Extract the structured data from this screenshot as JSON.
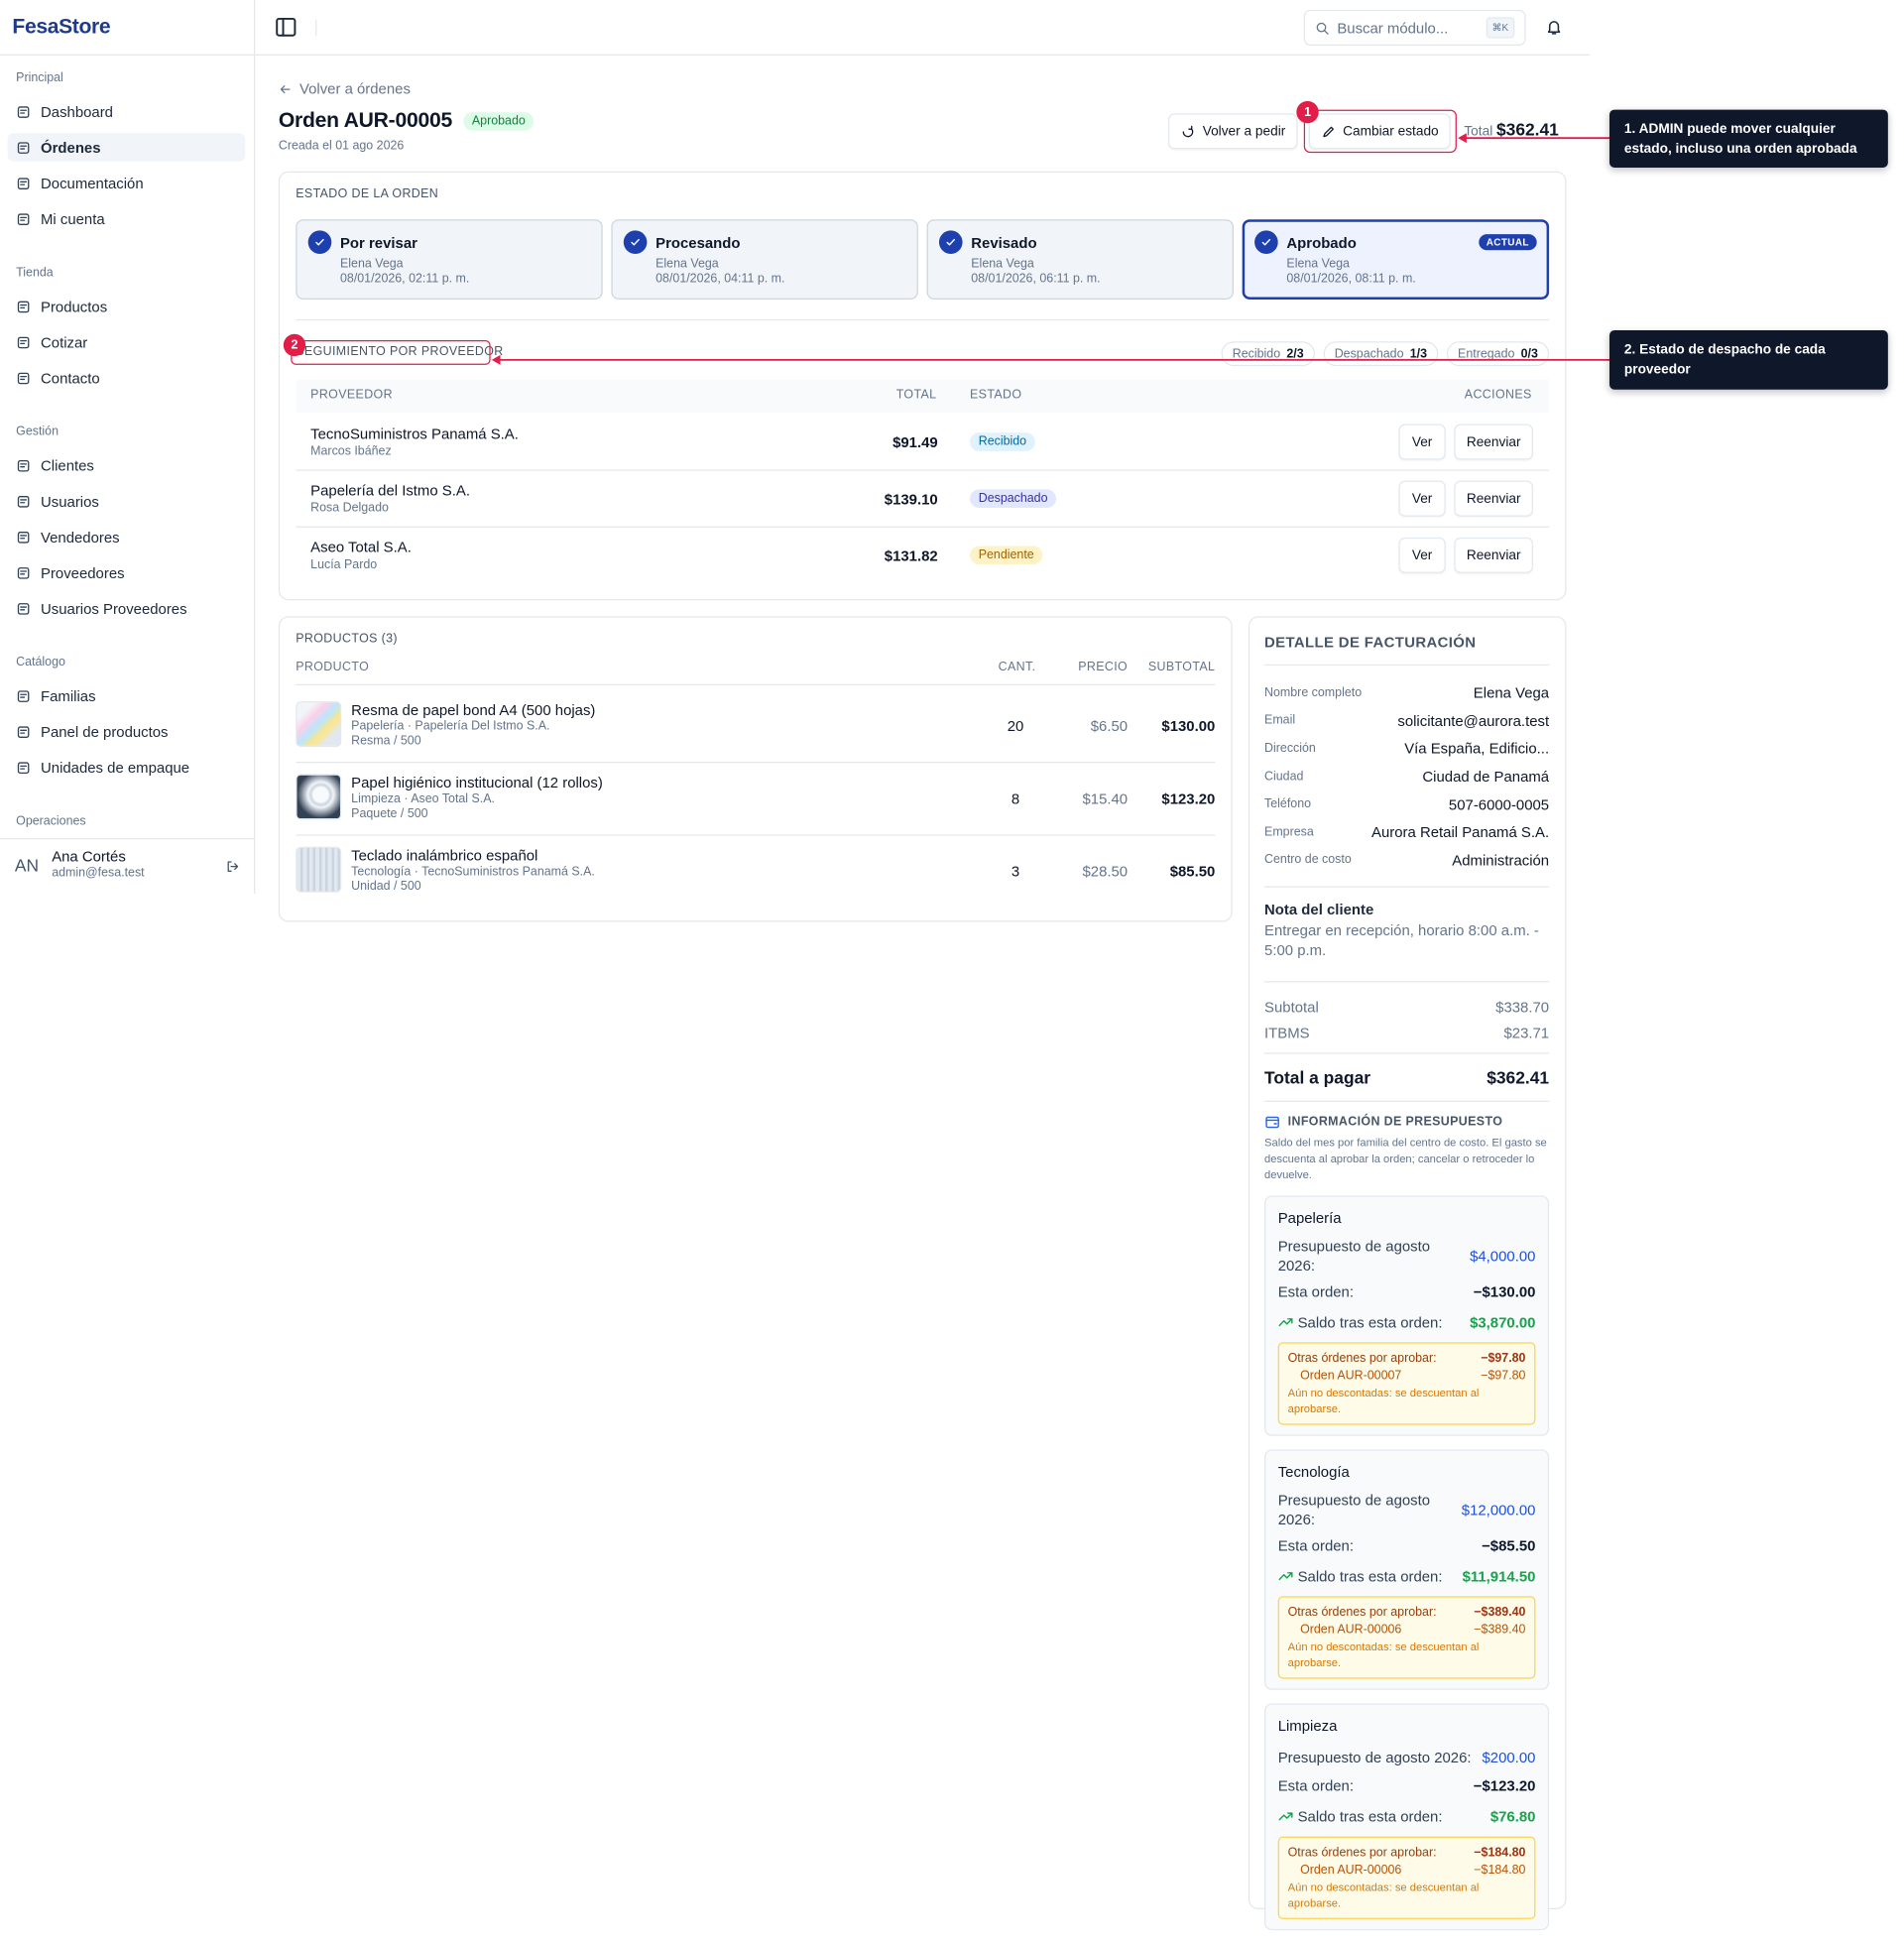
{
  "brand": "FesaStore",
  "topbar": {
    "search_placeholder": "Buscar módulo...",
    "shortcut": "⌘K"
  },
  "sidebar": {
    "active": [
      0,
      1
    ],
    "sections": [
      {
        "title": "Principal",
        "items": [
          "Dashboard",
          "Órdenes",
          "Documentación",
          "Mi cuenta"
        ]
      },
      {
        "title": "Tienda",
        "items": [
          "Productos",
          "Cotizar",
          "Contacto"
        ]
      },
      {
        "title": "Gestión",
        "items": [
          "Clientes",
          "Usuarios",
          "Vendedores",
          "Proveedores",
          "Usuarios Proveedores"
        ]
      },
      {
        "title": "Catálogo",
        "items": [
          "Familias",
          "Panel de productos",
          "Unidades de empaque"
        ]
      },
      {
        "title": "Operaciones",
        "items": []
      }
    ],
    "user": {
      "initials": "AN",
      "name": "Ana Cortés",
      "email": "admin@fesa.test"
    }
  },
  "order": {
    "back": "Volver a órdenes",
    "title": "Orden AUR-00005",
    "status": "Aprobado",
    "created": "Creada el 01 ago 2026",
    "actions": [
      "Volver a pedir",
      "Cambiar estado"
    ],
    "total_label": "Total",
    "total": "$362.41"
  },
  "status_timeline": {
    "title": "ESTADO DE LA ORDEN",
    "current": 3,
    "current_badge": "ACTUAL",
    "steps": [
      {
        "name": "Por revisar",
        "user": "Elena Vega",
        "date": "08/01/2026, 02:11 p. m."
      },
      {
        "name": "Procesando",
        "user": "Elena Vega",
        "date": "08/01/2026, 04:11 p. m."
      },
      {
        "name": "Revisado",
        "user": "Elena Vega",
        "date": "08/01/2026, 06:11 p. m."
      },
      {
        "name": "Aprobado",
        "user": "Elena Vega",
        "date": "08/01/2026, 08:11 p. m."
      }
    ]
  },
  "suppliers": {
    "title": "SEGUIMIENTO POR PROVEEDOR",
    "summary": [
      {
        "label": "Recibido",
        "value": "2/3"
      },
      {
        "label": "Despachado",
        "value": "1/3"
      },
      {
        "label": "Entregado",
        "value": "0/3"
      }
    ],
    "columns": [
      "PROVEEDOR",
      "TOTAL",
      "ESTADO",
      "ACCIONES"
    ],
    "buttons": [
      "Ver",
      "Reenviar"
    ],
    "rows": [
      {
        "name": "TecnoSuministros Panamá S.A.",
        "contact": "Marcos Ibáñez",
        "total": "$91.49",
        "status": "Recibido",
        "status_color": "#0369a1",
        "status_bg": "#e0f2fe"
      },
      {
        "name": "Papelería del Istmo S.A.",
        "contact": "Rosa Delgado",
        "total": "$139.10",
        "status": "Despachado",
        "status_color": "#3730a3",
        "status_bg": "#e0e7ff"
      },
      {
        "name": "Aseo Total S.A.",
        "contact": "Lucía Pardo",
        "total": "$131.82",
        "status": "Pendiente",
        "status_color": "#a16207",
        "status_bg": "#fef3c7"
      }
    ]
  },
  "products": {
    "title": "PRODUCTOS (3)",
    "columns": [
      "PRODUCTO",
      "CANT.",
      "PRECIO",
      "SUBTOTAL"
    ],
    "rows": [
      {
        "name": "Resma de papel bond A4 (500 hojas)",
        "meta": "Papelería · Papelería Del Istmo S.A.",
        "unit": "Resma / 500",
        "qty": "20",
        "price": "$6.50",
        "subtotal": "$130.00"
      },
      {
        "name": "Papel higiénico institucional (12 rollos)",
        "meta": "Limpieza · Aseo Total S.A.",
        "unit": "Paquete / 500",
        "qty": "8",
        "price": "$15.40",
        "subtotal": "$123.20"
      },
      {
        "name": "Teclado inalámbrico español",
        "meta": "Tecnología · TecnoSuministros Panamá S.A.",
        "unit": "Unidad / 500",
        "qty": "3",
        "price": "$28.50",
        "subtotal": "$85.50"
      }
    ]
  },
  "billing": {
    "title": "DETALLE DE FACTURACIÓN",
    "fields": [
      {
        "label": "Nombre completo",
        "value": "Elena Vega"
      },
      {
        "label": "Email",
        "value": "solicitante@aurora.test"
      },
      {
        "label": "Dirección",
        "value": "Vía España, Edificio..."
      },
      {
        "label": "Ciudad",
        "value": "Ciudad de Panamá"
      },
      {
        "label": "Teléfono",
        "value": "507-6000-0005"
      },
      {
        "label": "Empresa",
        "value": "Aurora Retail Panamá S.A."
      },
      {
        "label": "Centro de costo",
        "value": "Administración"
      }
    ],
    "note_title": "Nota del cliente",
    "note": "Entregar en recepción, horario 8:00 a.m. - 5:00 p.m.",
    "totals": [
      {
        "label": "Subtotal",
        "value": "$338.70"
      },
      {
        "label": "ITBMS",
        "value": "$23.71"
      },
      {
        "label": "Total a pagar",
        "value": "$362.41"
      }
    ]
  },
  "budget": {
    "title": "INFORMACIÓN DE PRESUPUESTO",
    "description": "Saldo del mes por familia del centro de costo. El gasto se descuenta al aprobar la orden; cancelar o retroceder lo devuelve.",
    "cards": [
      {
        "family": "Papelería",
        "budget_label": "Presupuesto de agosto 2026:",
        "budget": "$4,000.00",
        "order_label": "Esta orden:",
        "order": "−$130.00",
        "balance_label": "Saldo tras esta orden:",
        "balance": "$3,870.00",
        "pending_label": "Otras órdenes por aprobar:",
        "pending": "−$97.80",
        "pending_orders": [
          {
            "order": "Orden AUR-00007",
            "amount": "−$97.80"
          }
        ],
        "pending_note": "Aún no descontadas: se descuentan al aprobarse."
      },
      {
        "family": "Tecnología",
        "budget_label": "Presupuesto de agosto 2026:",
        "budget": "$12,000.00",
        "order_label": "Esta orden:",
        "order": "−$85.50",
        "balance_label": "Saldo tras esta orden:",
        "balance": "$11,914.50",
        "pending_label": "Otras órdenes por aprobar:",
        "pending": "−$389.40",
        "pending_orders": [
          {
            "order": "Orden AUR-00006",
            "amount": "−$389.40"
          }
        ],
        "pending_note": "Aún no descontadas: se descuentan al aprobarse."
      },
      {
        "family": "Limpieza",
        "budget_label": "Presupuesto de agosto 2026:",
        "budget": "$200.00",
        "order_label": "Esta orden:",
        "order": "−$123.20",
        "balance_label": "Saldo tras esta orden:",
        "balance": "$76.80",
        "pending_label": "Otras órdenes por aprobar:",
        "pending": "−$184.80",
        "pending_orders": [
          {
            "order": "Orden AUR-00006",
            "amount": "−$184.80"
          }
        ],
        "pending_note": "Aún no descontadas: se descuentan al aprobarse."
      }
    ]
  },
  "annotations": [
    {
      "number": "1",
      "text": "1. ADMIN puede mover cualquier estado, incluso una orden aprobada"
    },
    {
      "number": "2",
      "text": "2. Estado de despacho de cada proveedor"
    }
  ]
}
